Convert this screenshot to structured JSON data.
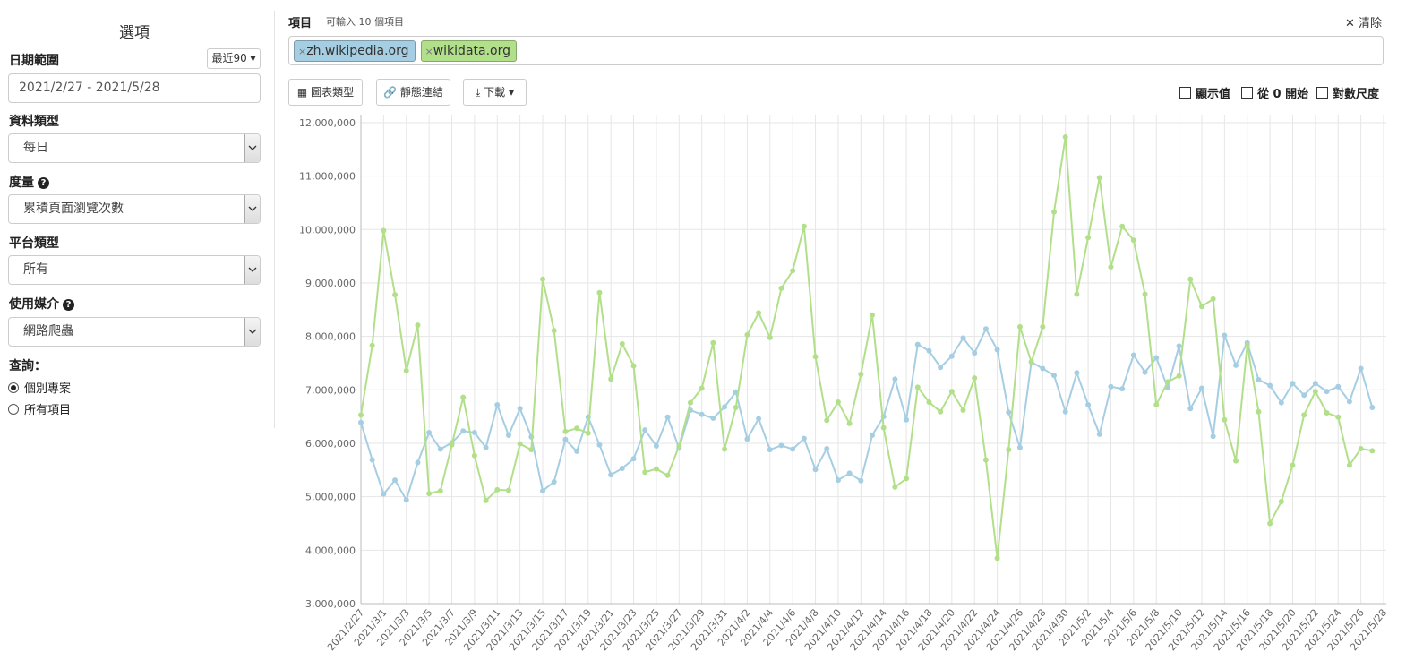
{
  "sidebar": {
    "title": "選項",
    "date_range": {
      "label": "日期範圍",
      "preset": "最近90",
      "value": "2021/2/27 - 2021/5/28"
    },
    "data_type": {
      "label": "資料類型",
      "value": "每日"
    },
    "metric": {
      "label": "度量",
      "value": "累積頁面瀏覽次數"
    },
    "platform": {
      "label": "平台類型",
      "value": "所有"
    },
    "agent": {
      "label": "使用媒介",
      "value": "網路爬蟲"
    },
    "query": {
      "label": "查詢：",
      "options": [
        "個別專案",
        "所有項目"
      ]
    }
  },
  "toolbar": {
    "items_label": "項目",
    "items_hint": "可輸入 10 個項目",
    "clear": "清除",
    "buttons": [
      "圖表類型",
      "靜態連結",
      "下載"
    ],
    "checkboxes": [
      "顯示值",
      "從 0 開始",
      "對數尺度"
    ]
  },
  "chart_data": {
    "type": "line",
    "grid": true,
    "categories": [
      "2021/2/27",
      null,
      "2021/3/1",
      null,
      "2021/3/3",
      null,
      "2021/3/5",
      null,
      "2021/3/7",
      null,
      "2021/3/9",
      null,
      "2021/3/11",
      null,
      "2021/3/13",
      null,
      "2021/3/15",
      null,
      "2021/3/17",
      null,
      "2021/3/19",
      null,
      "2021/3/21",
      null,
      "2021/3/23",
      null,
      "2021/3/25",
      null,
      "2021/3/27",
      null,
      "2021/3/29",
      null,
      "2021/3/31",
      null,
      "2021/4/2",
      null,
      "2021/4/4",
      null,
      "2021/4/6",
      null,
      "2021/4/8",
      null,
      "2021/4/10",
      null,
      "2021/4/12",
      null,
      "2021/4/14",
      null,
      "2021/4/16",
      null,
      "2021/4/18",
      null,
      "2021/4/20",
      null,
      "2021/4/22",
      null,
      "2021/4/24",
      null,
      "2021/4/26",
      null,
      "2021/4/28",
      null,
      "2021/4/30",
      null,
      "2021/5/2",
      null,
      "2021/5/4",
      null,
      "2021/5/6",
      null,
      "2021/5/8",
      null,
      "2021/5/10",
      null,
      "2021/5/12",
      null,
      "2021/5/14",
      null,
      "2021/5/16",
      null,
      "2021/5/18",
      null,
      "2021/5/20",
      null,
      "2021/5/22",
      null,
      "2021/5/24",
      null,
      "2021/5/26",
      null,
      "2021/5/28"
    ],
    "ylim": [
      3000000,
      12150000
    ],
    "yticks": [
      {
        "value": 3000000,
        "label": "3,000,000"
      },
      {
        "value": 4000000,
        "label": "4,000,000"
      },
      {
        "value": 5000000,
        "label": "5,000,000"
      },
      {
        "value": 6000000,
        "label": "6,000,000"
      },
      {
        "value": 7000000,
        "label": "7,000,000"
      },
      {
        "value": 8000000,
        "label": "8,000,000"
      },
      {
        "value": 9000000,
        "label": "9,000,000"
      },
      {
        "value": 10000000,
        "label": "10,000,000"
      },
      {
        "value": 11000000,
        "label": "11,000,000"
      },
      {
        "value": 12000000,
        "label": "12,000,000"
      }
    ],
    "series": [
      {
        "name": "zh.wikipedia.org",
        "color": "#a6cee3",
        "values": [
          6390000,
          5690000,
          5050000,
          5310000,
          4940000,
          5640000,
          6200000,
          5890000,
          6010000,
          6230000,
          6200000,
          5920000,
          6720000,
          6150000,
          6650000,
          6120000,
          5110000,
          5280000,
          6070000,
          5850000,
          6490000,
          5970000,
          5410000,
          5530000,
          5710000,
          6250000,
          5950000,
          6490000,
          5910000,
          6620000,
          6540000,
          6470000,
          6680000,
          6960000,
          6080000,
          6460000,
          5880000,
          5960000,
          5890000,
          6090000,
          5510000,
          5900000,
          5310000,
          5440000,
          5300000,
          6150000,
          6500000,
          7200000,
          6440000,
          7850000,
          7730000,
          7420000,
          7630000,
          7970000,
          7690000,
          8140000,
          7750000,
          6580000,
          5920000,
          7520000,
          7400000,
          7270000,
          6590000,
          7320000,
          6720000,
          6170000,
          7060000,
          7020000,
          7650000,
          7330000,
          7600000,
          7040000,
          7820000,
          6650000,
          7030000,
          6130000,
          8020000,
          7460000,
          7880000,
          7190000,
          7080000,
          6760000,
          7120000,
          6900000,
          7120000,
          6970000,
          7060000,
          6780000,
          7400000,
          6670000,
          null
        ]
      },
      {
        "name": "wikidata.org",
        "color": "#b2df8a",
        "values": [
          6530000,
          7830000,
          9980000,
          8780000,
          7360000,
          8210000,
          5060000,
          5110000,
          5970000,
          6860000,
          5770000,
          4930000,
          5130000,
          5120000,
          5990000,
          5880000,
          9070000,
          8110000,
          6220000,
          6280000,
          6190000,
          8820000,
          7200000,
          7860000,
          7450000,
          5460000,
          5520000,
          5400000,
          5950000,
          6760000,
          7030000,
          7880000,
          5890000,
          6670000,
          8030000,
          8440000,
          7980000,
          8900000,
          9230000,
          10060000,
          7620000,
          6430000,
          6770000,
          6370000,
          7290000,
          8400000,
          6290000,
          5180000,
          5340000,
          7050000,
          6770000,
          6590000,
          6970000,
          6620000,
          7220000,
          5690000,
          3850000,
          5880000,
          8180000,
          7520000,
          8180000,
          10330000,
          11730000,
          8790000,
          9850000,
          10970000,
          9300000,
          10060000,
          9800000,
          8790000,
          6720000,
          7150000,
          7260000,
          9070000,
          8560000,
          8700000,
          6440000,
          5670000,
          7840000,
          6590000,
          4500000,
          4910000,
          5590000,
          6530000,
          6970000,
          6570000,
          6490000,
          5590000,
          5900000,
          5860000,
          null
        ]
      }
    ]
  }
}
